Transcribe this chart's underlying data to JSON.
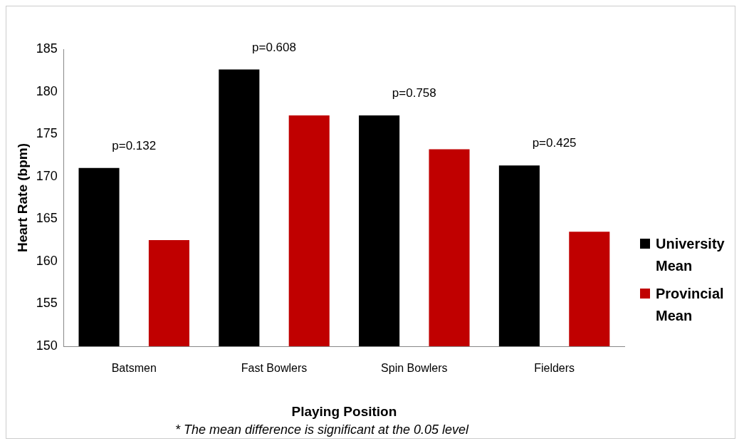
{
  "chart_data": {
    "type": "bar",
    "xlabel": "Playing Position",
    "ylabel": "Heart Rate (bpm)",
    "categories": [
      "Batsmen",
      "Fast Bowlers",
      "Spin Bowlers",
      "Fielders"
    ],
    "series": [
      {
        "name": "University Mean",
        "color": "#000000",
        "values": [
          171.0,
          182.6,
          177.2,
          171.3
        ]
      },
      {
        "name": "Provincial Mean",
        "color": "#c00000",
        "values": [
          162.5,
          177.2,
          173.2,
          163.5
        ]
      }
    ],
    "ylim": [
      150,
      185
    ],
    "yticks": [
      150,
      155,
      160,
      165,
      170,
      175,
      180,
      185
    ],
    "grid": false,
    "legend": "right",
    "annotations": [
      "p=0.132",
      "p=0.608",
      "p=0.758",
      "p=0.425",
      "* The mean difference is significant at the 0.05 level"
    ]
  }
}
